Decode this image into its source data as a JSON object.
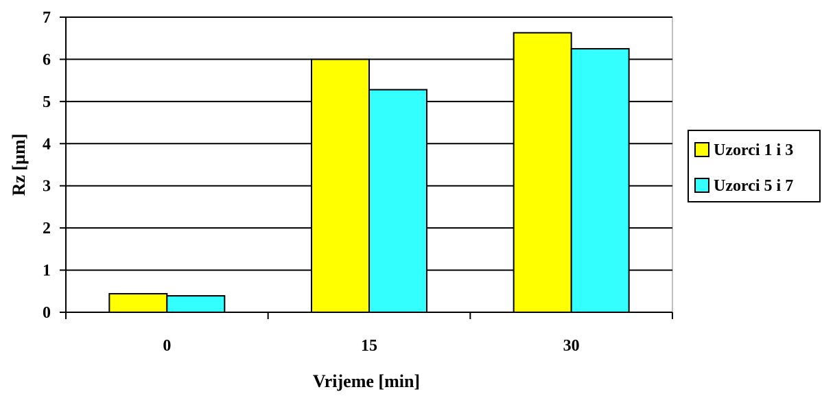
{
  "chart_data": {
    "type": "bar",
    "title": "",
    "xlabel": "Vrijeme  [min]",
    "ylabel": "Rz  [µm]",
    "categories": [
      "0",
      "15",
      "30"
    ],
    "series": [
      {
        "name": "Uzorci 1 i 3",
        "values": [
          0.44,
          6.0,
          6.63
        ],
        "color": "#ffff00"
      },
      {
        "name": "Uzorci 5 i 7",
        "values": [
          0.39,
          5.28,
          6.25
        ],
        "color": "#33ffff"
      }
    ],
    "ylim": [
      0,
      7
    ],
    "yticks": [
      "0",
      "1",
      "2",
      "3",
      "4",
      "5",
      "6",
      "7"
    ],
    "grid": true,
    "legend_position": "right",
    "colors": {
      "background": "#ffffff",
      "axis": "#000000",
      "grid": "#000000"
    }
  }
}
